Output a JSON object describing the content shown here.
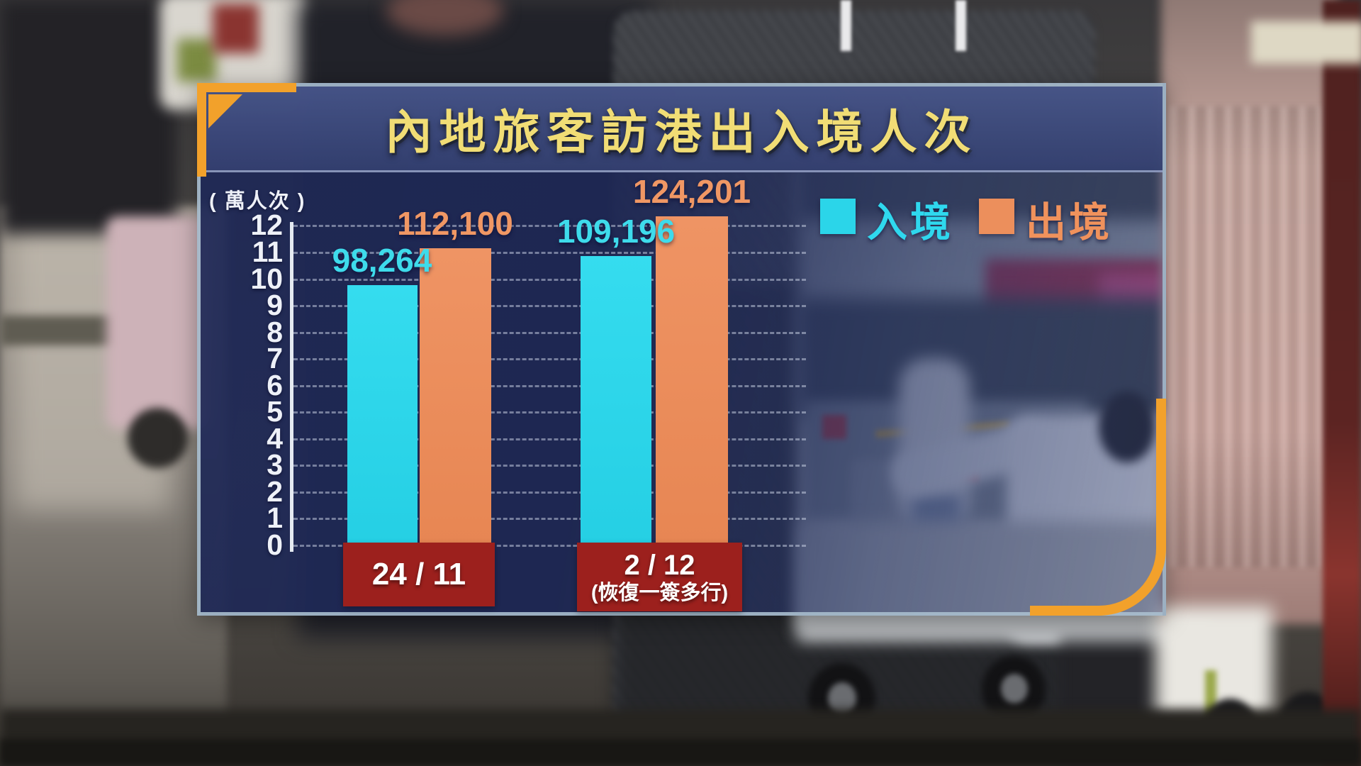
{
  "header": {
    "title": "內地旅客訪港出入境人次"
  },
  "chart_data": {
    "type": "bar",
    "title": "內地旅客訪港出入境人次",
    "unit_label": "( 萬人次 )",
    "categories": [
      "24 / 11",
      "2 / 12"
    ],
    "category_notes": [
      "",
      "(恢復一簽多行)"
    ],
    "series": [
      {
        "name": "入境",
        "color": "#2bd5e9",
        "values": [
          98264,
          109196
        ],
        "labels": [
          "98,264",
          "109,196"
        ]
      },
      {
        "name": "出境",
        "color": "#ec8f5c",
        "values": [
          112100,
          124201
        ],
        "labels": [
          "112,100",
          "124,201"
        ]
      }
    ],
    "y_ticks": [
      "12",
      "11",
      "10",
      "9",
      "8",
      "7",
      "6",
      "5",
      "4",
      "3",
      "2",
      "1",
      "0"
    ],
    "ylim": [
      0,
      120000
    ],
    "y_unit_value": 10000,
    "grid": "dashed-horizontal",
    "legend_position": "top-right"
  },
  "legend": {
    "items": [
      {
        "label": "入境",
        "color": "#2bd5e9"
      },
      {
        "label": "出境",
        "color": "#ec8f5c"
      }
    ]
  },
  "colors": {
    "accent_orange": "#f2a12b",
    "category_box_red": "#9c201d",
    "panel_navy": "#2c3a6e",
    "title_yellow": "#f1dd75",
    "tick_white": "#eef1f8"
  }
}
